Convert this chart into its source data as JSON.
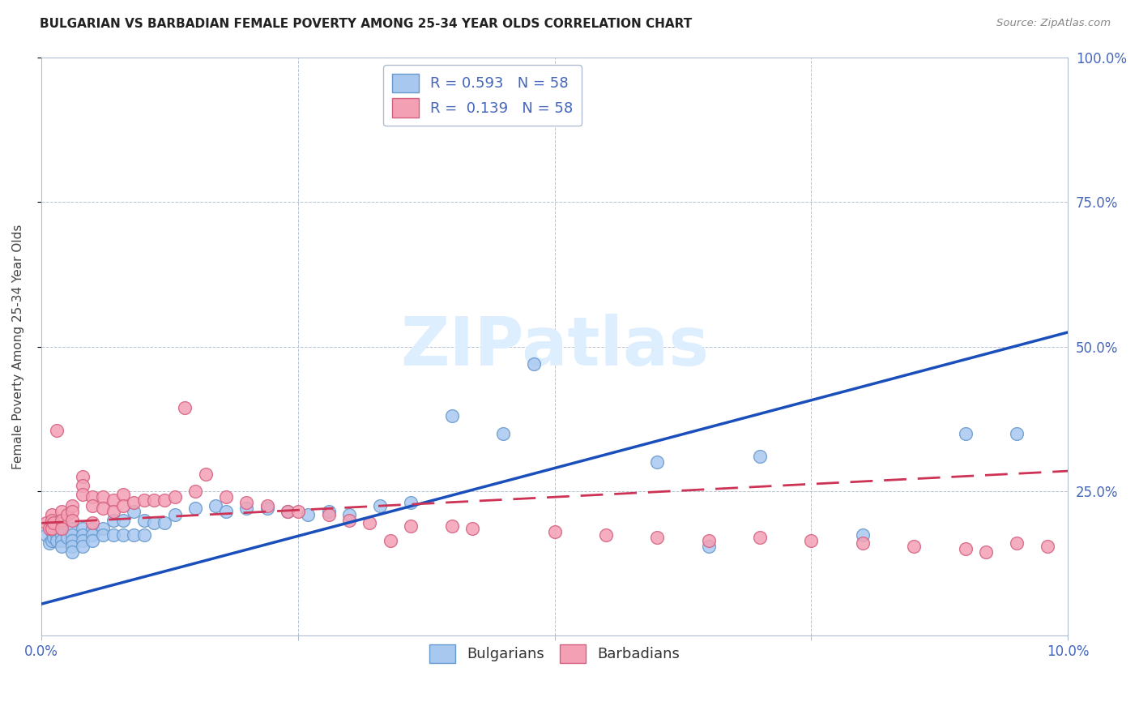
{
  "title": "BULGARIAN VS BARBADIAN FEMALE POVERTY AMONG 25-34 YEAR OLDS CORRELATION CHART",
  "source": "Source: ZipAtlas.com",
  "ylabel": "Female Poverty Among 25-34 Year Olds",
  "xlim": [
    0.0,
    0.1
  ],
  "ylim": [
    0.0,
    1.0
  ],
  "xtick_positions": [
    0.0,
    0.025,
    0.05,
    0.075,
    0.1
  ],
  "xtick_labels": [
    "0.0%",
    "",
    "",
    "",
    "10.0%"
  ],
  "ytick_positions": [
    0.25,
    0.5,
    0.75,
    1.0
  ],
  "ytick_labels": [
    "25.0%",
    "50.0%",
    "75.0%",
    "100.0%"
  ],
  "legend_line1": "R = 0.593   N = 58",
  "legend_line2": "R =  0.139   N = 58",
  "bulgarian_color": "#a8c8f0",
  "bulgarian_edge": "#6699cc",
  "barbadian_color": "#f4a0b4",
  "barbadian_edge": "#d46080",
  "trend_bg_color": "#1a4fbb",
  "trend_bb_color": "#cc3355",
  "watermark_text": "ZIPatlas",
  "watermark_color": "#ddeeff",
  "tick_color": "#4466bb",
  "grid_color": "#b0bcd0",
  "bg_x": [
    0.0005,
    0.0008,
    0.001,
    0.001,
    0.001,
    0.0012,
    0.0015,
    0.0015,
    0.002,
    0.002,
    0.002,
    0.002,
    0.0025,
    0.003,
    0.003,
    0.003,
    0.003,
    0.003,
    0.004,
    0.004,
    0.004,
    0.004,
    0.005,
    0.005,
    0.005,
    0.006,
    0.006,
    0.007,
    0.007,
    0.008,
    0.008,
    0.009,
    0.009,
    0.01,
    0.01,
    0.011,
    0.012,
    0.013,
    0.015,
    0.017,
    0.018,
    0.02,
    0.022,
    0.024,
    0.026,
    0.028,
    0.03,
    0.033,
    0.036,
    0.04,
    0.045,
    0.048,
    0.095,
    0.06,
    0.065,
    0.07,
    0.08,
    0.09
  ],
  "bg_y": [
    0.175,
    0.16,
    0.195,
    0.18,
    0.165,
    0.17,
    0.175,
    0.165,
    0.185,
    0.175,
    0.165,
    0.155,
    0.17,
    0.185,
    0.175,
    0.165,
    0.155,
    0.145,
    0.185,
    0.175,
    0.165,
    0.155,
    0.185,
    0.175,
    0.165,
    0.185,
    0.175,
    0.2,
    0.175,
    0.2,
    0.175,
    0.215,
    0.175,
    0.2,
    0.175,
    0.195,
    0.195,
    0.21,
    0.22,
    0.225,
    0.215,
    0.22,
    0.22,
    0.215,
    0.21,
    0.215,
    0.21,
    0.225,
    0.23,
    0.38,
    0.35,
    0.47,
    0.35,
    0.3,
    0.155,
    0.31,
    0.175,
    0.35
  ],
  "bb_x": [
    0.0005,
    0.0008,
    0.001,
    0.001,
    0.001,
    0.0012,
    0.0015,
    0.002,
    0.002,
    0.002,
    0.0025,
    0.003,
    0.003,
    0.003,
    0.004,
    0.004,
    0.004,
    0.005,
    0.005,
    0.005,
    0.006,
    0.006,
    0.007,
    0.007,
    0.008,
    0.008,
    0.009,
    0.01,
    0.011,
    0.012,
    0.013,
    0.014,
    0.015,
    0.016,
    0.018,
    0.02,
    0.022,
    0.024,
    0.025,
    0.028,
    0.03,
    0.032,
    0.034,
    0.036,
    0.04,
    0.042,
    0.05,
    0.055,
    0.06,
    0.065,
    0.07,
    0.075,
    0.08,
    0.085,
    0.09,
    0.092,
    0.095,
    0.098
  ],
  "bb_y": [
    0.195,
    0.185,
    0.21,
    0.2,
    0.185,
    0.195,
    0.355,
    0.215,
    0.2,
    0.185,
    0.21,
    0.225,
    0.215,
    0.2,
    0.275,
    0.26,
    0.245,
    0.24,
    0.225,
    0.195,
    0.24,
    0.22,
    0.235,
    0.215,
    0.245,
    0.225,
    0.23,
    0.235,
    0.235,
    0.235,
    0.24,
    0.395,
    0.25,
    0.28,
    0.24,
    0.23,
    0.225,
    0.215,
    0.215,
    0.21,
    0.2,
    0.195,
    0.165,
    0.19,
    0.19,
    0.185,
    0.18,
    0.175,
    0.17,
    0.165,
    0.17,
    0.165,
    0.16,
    0.155,
    0.15,
    0.145,
    0.16,
    0.155
  ],
  "trend_bg_x0": 0.0,
  "trend_bg_x1": 0.1,
  "trend_bg_y0": 0.055,
  "trend_bg_y1": 0.525,
  "trend_bb_x0": 0.0,
  "trend_bb_x1": 0.1,
  "trend_bb_y0": 0.195,
  "trend_bb_y1": 0.285
}
